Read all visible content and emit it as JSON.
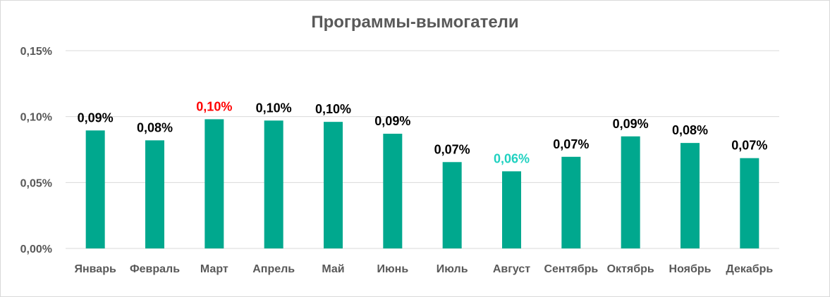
{
  "chart_data": {
    "type": "bar",
    "title": "Программы-вымогатели",
    "xlabel": "",
    "ylabel": "",
    "ylim": [
      0,
      0.15
    ],
    "y_ticks": [
      {
        "value": 0,
        "label": "0,00%"
      },
      {
        "value": 0.05,
        "label": "0,05%"
      },
      {
        "value": 0.1,
        "label": "0,10%"
      },
      {
        "value": 0.15,
        "label": "0,15%"
      }
    ],
    "grid": true,
    "legend": "none",
    "bar_color": "#00a88e",
    "categories": [
      "Январь",
      "Февраль",
      "Март",
      "Апрель",
      "Май",
      "Июнь",
      "Июль",
      "Август",
      "Сентябрь",
      "Октябрь",
      "Ноябрь",
      "Декабрь"
    ],
    "values": [
      0.0895,
      0.082,
      0.098,
      0.097,
      0.096,
      0.087,
      0.0655,
      0.0585,
      0.0695,
      0.085,
      0.08,
      0.0685
    ],
    "data_labels": [
      "0,09%",
      "0,08%",
      "0,10%",
      "0,10%",
      "0,10%",
      "0,09%",
      "0,07%",
      "0,06%",
      "0,07%",
      "0,09%",
      "0,08%",
      "0,07%"
    ],
    "label_colors": [
      "#000000",
      "#000000",
      "#ff0000",
      "#000000",
      "#000000",
      "#000000",
      "#000000",
      "#1fd1c0",
      "#000000",
      "#000000",
      "#000000",
      "#000000"
    ]
  }
}
